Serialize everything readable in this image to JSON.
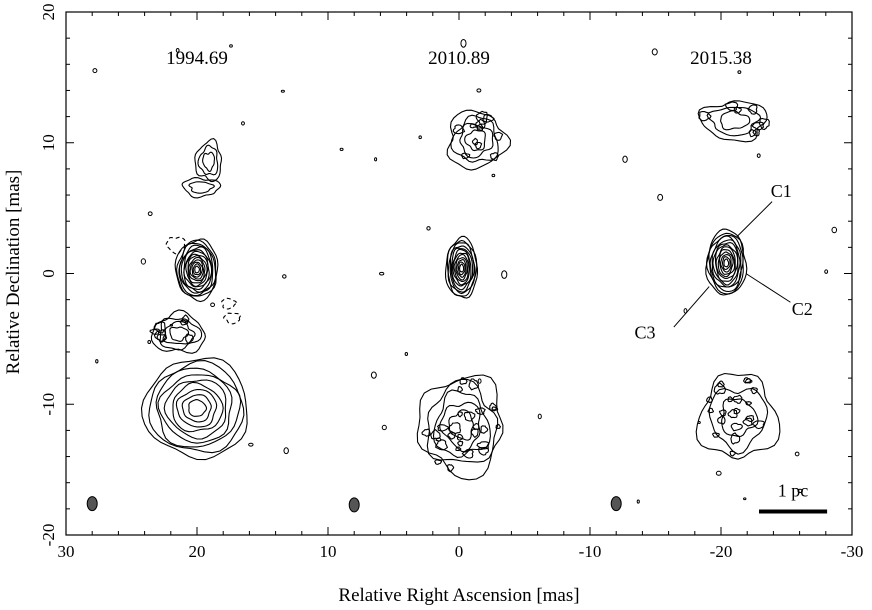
{
  "chart_data": {
    "type": "contour",
    "xlabel": "Relative Right Ascension [mas]",
    "ylabel": "Relative Declination [mas]",
    "xlim": [
      30,
      -30
    ],
    "ylim": [
      -20,
      20
    ],
    "x_ticks": [
      30,
      20,
      10,
      0,
      -10,
      -20,
      -30
    ],
    "x_tick_labels": [
      "30",
      "20",
      "10",
      "0",
      "-10",
      "-20",
      "-30"
    ],
    "y_ticks": [
      -20,
      -10,
      0,
      10,
      20
    ],
    "y_tick_labels": [
      "-20",
      "-10",
      "0",
      "10",
      "20"
    ],
    "epochs": [
      {
        "label": "1994.69",
        "x_offset": 20,
        "label_pos": [
          20,
          16.5
        ],
        "beam": [
          28,
          -17.6
        ],
        "features": [
          {
            "x": 20,
            "y": 0.3,
            "rx": 1.6,
            "ry": 2.3,
            "levels": 14,
            "neg": false
          },
          {
            "x": 19.1,
            "y": 8.6,
            "rx": 1.0,
            "ry": 1.5,
            "levels": 3,
            "neg": false
          },
          {
            "x": 19.7,
            "y": 6.6,
            "rx": 1.4,
            "ry": 0.7,
            "levels": 2,
            "neg": false
          },
          {
            "x": 21.4,
            "y": -4.6,
            "rx": 2.0,
            "ry": 1.5,
            "levels": 4,
            "neg": false
          },
          {
            "x": 20.0,
            "y": -10.3,
            "rx": 4.0,
            "ry": 3.8,
            "levels": 9,
            "neg": false
          },
          {
            "x": 21.6,
            "y": 2.2,
            "rx": 0.7,
            "ry": 0.6,
            "levels": 1,
            "neg": true
          },
          {
            "x": 17.3,
            "y": -3.4,
            "rx": 0.6,
            "ry": 0.4,
            "levels": 1,
            "neg": true
          },
          {
            "x": 17.6,
            "y": -2.3,
            "rx": 0.5,
            "ry": 0.4,
            "levels": 1,
            "neg": true
          }
        ]
      },
      {
        "label": "2010.89",
        "x_offset": 0,
        "label_pos": [
          0,
          16.5
        ],
        "beam": [
          8,
          -17.7
        ],
        "features": [
          {
            "x": -0.2,
            "y": 0.4,
            "rx": 1.2,
            "ry": 2.3,
            "levels": 12,
            "neg": false
          },
          {
            "x": -1.3,
            "y": 10.2,
            "rx": 2.2,
            "ry": 2.2,
            "levels": 4,
            "neg": false
          },
          {
            "x": -0.2,
            "y": -11.6,
            "rx": 3.2,
            "ry": 3.8,
            "levels": 5,
            "neg": false
          }
        ]
      },
      {
        "label": "2015.38",
        "x_offset": -20,
        "label_pos": [
          -20,
          16.5
        ],
        "beam": [
          -12,
          -17.6
        ],
        "features": [
          {
            "x": -20.4,
            "y": 0.8,
            "rx": 1.5,
            "ry": 2.5,
            "levels": 13,
            "neg": false
          },
          {
            "x": -21.0,
            "y": 11.7,
            "rx": 2.5,
            "ry": 1.5,
            "levels": 3,
            "neg": false
          },
          {
            "x": -21.3,
            "y": -11.0,
            "rx": 3.0,
            "ry": 3.2,
            "levels": 3,
            "neg": false
          }
        ]
      }
    ],
    "annotations": [
      {
        "text": "C1",
        "text_pos": [
          -24.6,
          6.3
        ],
        "line_from": [
          -21.2,
          2.8
        ],
        "line_to": [
          -23.9,
          5.5
        ]
      },
      {
        "text": "C2",
        "text_pos": [
          -26.2,
          -2.7
        ],
        "line_from": [
          -21.9,
          0.0
        ],
        "line_to": [
          -25.3,
          -2.2
        ]
      },
      {
        "text": "C3",
        "text_pos": [
          -14.2,
          -4.5
        ],
        "line_from": [
          -19.1,
          -1.0
        ],
        "line_to": [
          -16.4,
          -4.1
        ]
      }
    ],
    "scale_bar": {
      "label": "1 pc",
      "x_start": -22.9,
      "x_end": -28.1,
      "y": -18.2,
      "label_pos": [
        -25.5,
        -16.6
      ]
    },
    "grid": false,
    "legend": "none"
  }
}
